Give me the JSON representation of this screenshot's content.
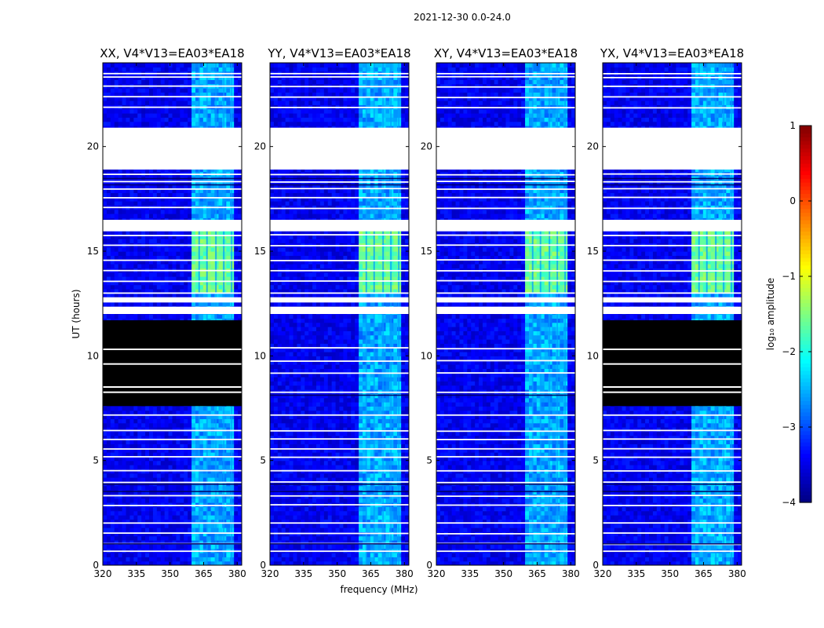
{
  "chart_data": {
    "type": "heatmap",
    "suptitle": "2021-12-30 0.0-24.0",
    "xlabel": "frequency (MHz)",
    "ylabel": "UT (hours)",
    "xlim": [
      320,
      382
    ],
    "ylim": [
      0,
      24
    ],
    "x_ticks": [
      320,
      335,
      350,
      365,
      380
    ],
    "y_ticks": [
      0,
      5,
      10,
      15,
      20
    ],
    "x_tick_labels": [
      "320",
      "335",
      "350",
      "365",
      "380"
    ],
    "y_tick_labels": [
      "0",
      "5",
      "10",
      "15",
      "20"
    ],
    "colorbar": {
      "label": "log₁₀ amplitude",
      "min": -4,
      "max": 1,
      "ticks": [
        -4,
        -3,
        -2,
        -1,
        0,
        1
      ],
      "tick_labels": [
        "−4",
        "−3",
        "−2",
        "−1",
        "0",
        "1"
      ],
      "colormap": "jet"
    },
    "rfi_band_mhz": [
      360,
      379
    ],
    "rfi_stripe_mhz": [
      363,
      366.5,
      370.5,
      374,
      377.5
    ],
    "gaps_white_hours": [
      [
        18.9,
        20.9
      ],
      [
        15.95,
        16.5
      ],
      [
        12.0,
        12.35
      ],
      [
        12.55,
        12.8
      ]
    ],
    "flagged_black_hours": {
      "XX": [
        [
          7.6,
          11.7
        ]
      ],
      "YY": [],
      "XY": [],
      "YX": [
        [
          7.6,
          11.7
        ]
      ]
    },
    "bright_period_hours": [
      12.95,
      16.0
    ],
    "panels": [
      {
        "title": "XX, V4*V13=EA03*EA18",
        "pol": "XX"
      },
      {
        "title": "YY, V4*V13=EA03*EA18",
        "pol": "YY"
      },
      {
        "title": "XY, V4*V13=EA03*EA18",
        "pol": "XY"
      },
      {
        "title": "YX, V4*V13=EA03*EA18",
        "pol": "YX"
      }
    ]
  }
}
